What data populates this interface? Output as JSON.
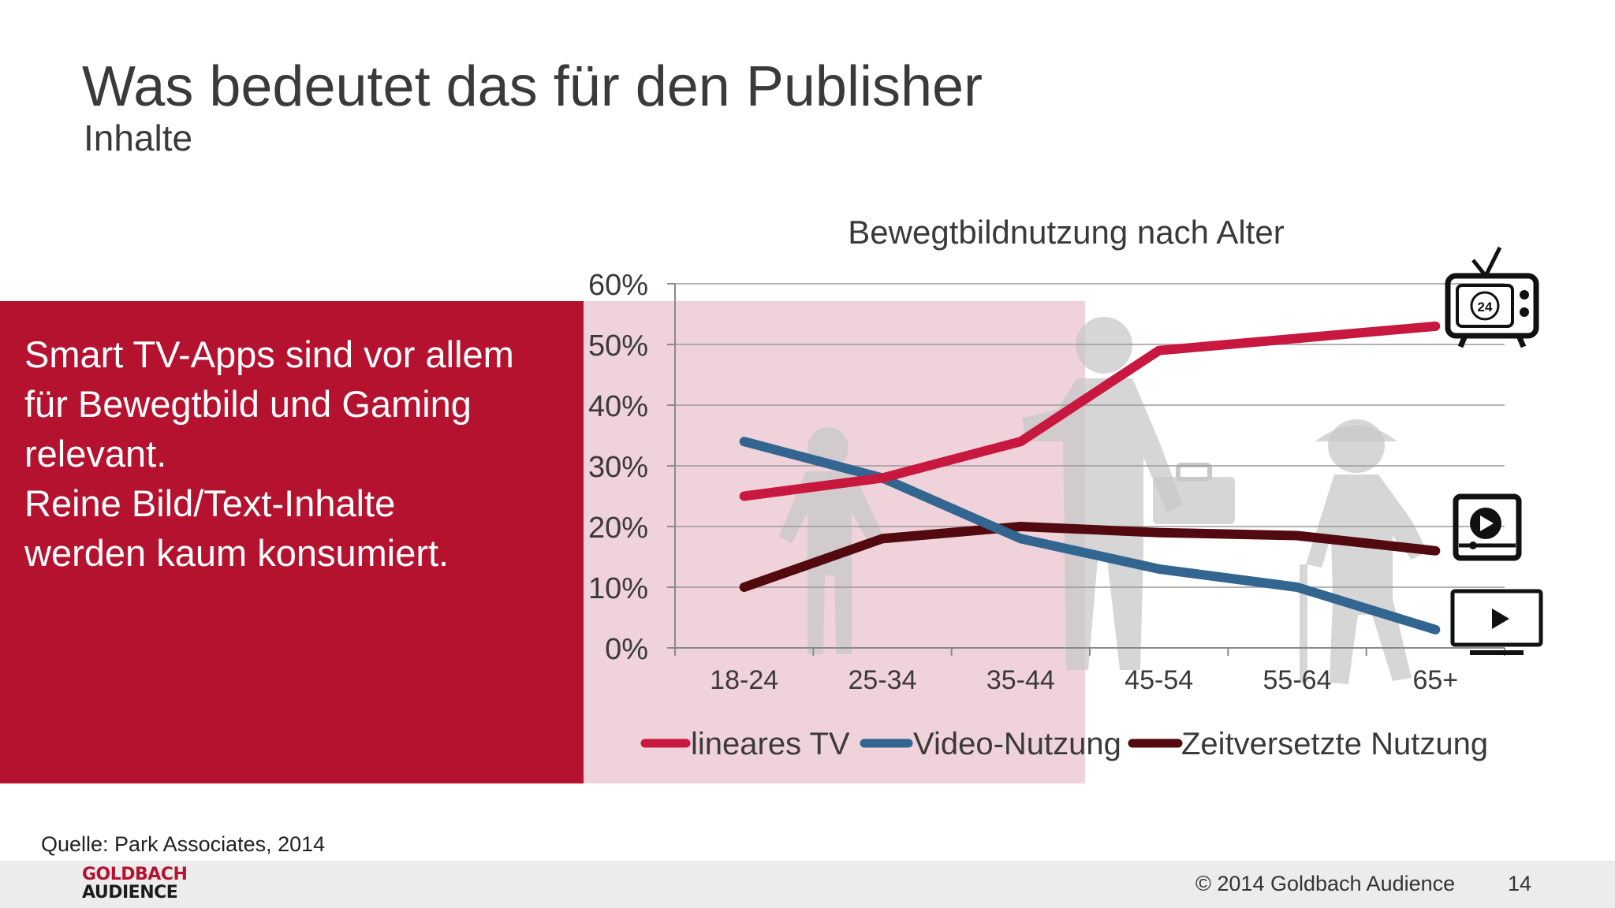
{
  "slide": {
    "title": "Was bedeutet das für den Publisher",
    "subtitle": "Inhalte"
  },
  "panel": {
    "lines": [
      "Smart TV-Apps sind vor allem",
      "für Bewegtbild und Gaming",
      "relevant.",
      "Reine Bild/Text-Inhalte",
      "werden kaum konsumiert."
    ]
  },
  "chart_data": {
    "type": "line",
    "title": "Bewegtbildnutzung nach Alter",
    "categories": [
      "18-24",
      "25-34",
      "35-44",
      "45-54",
      "55-64",
      "65+"
    ],
    "series": [
      {
        "name": "lineares TV",
        "color": "#c8183f",
        "values": [
          25,
          28,
          34,
          49,
          51,
          53
        ],
        "icon": "tv-24-icon"
      },
      {
        "name": "Video-Nutzung",
        "color": "#336591",
        "values": [
          34,
          28,
          18,
          13,
          10,
          3
        ],
        "icon": "monitor-play-icon"
      },
      {
        "name": "Zeitversetzte Nutzung",
        "color": "#520910",
        "values": [
          10,
          18,
          20,
          19,
          18.5,
          16
        ],
        "icon": "video-player-icon"
      }
    ],
    "yticks": [
      "0%",
      "10%",
      "20%",
      "30%",
      "40%",
      "50%",
      "60%"
    ],
    "ylim": [
      0,
      60
    ],
    "grid": true,
    "legend": "bottom"
  },
  "footer": {
    "source": "Quelle: Park Associates, 2014",
    "logo_line1": "GOLDBACH",
    "logo_line2": "AUDIENCE",
    "copyright": "© 2014 Goldbach Audience",
    "page_number": "14"
  },
  "colors": {
    "accent_red": "#b5122f",
    "highlight_pink": "#f0d3da",
    "footer_gray": "#ececec",
    "silhouette_gray": "#c8c8c8"
  }
}
